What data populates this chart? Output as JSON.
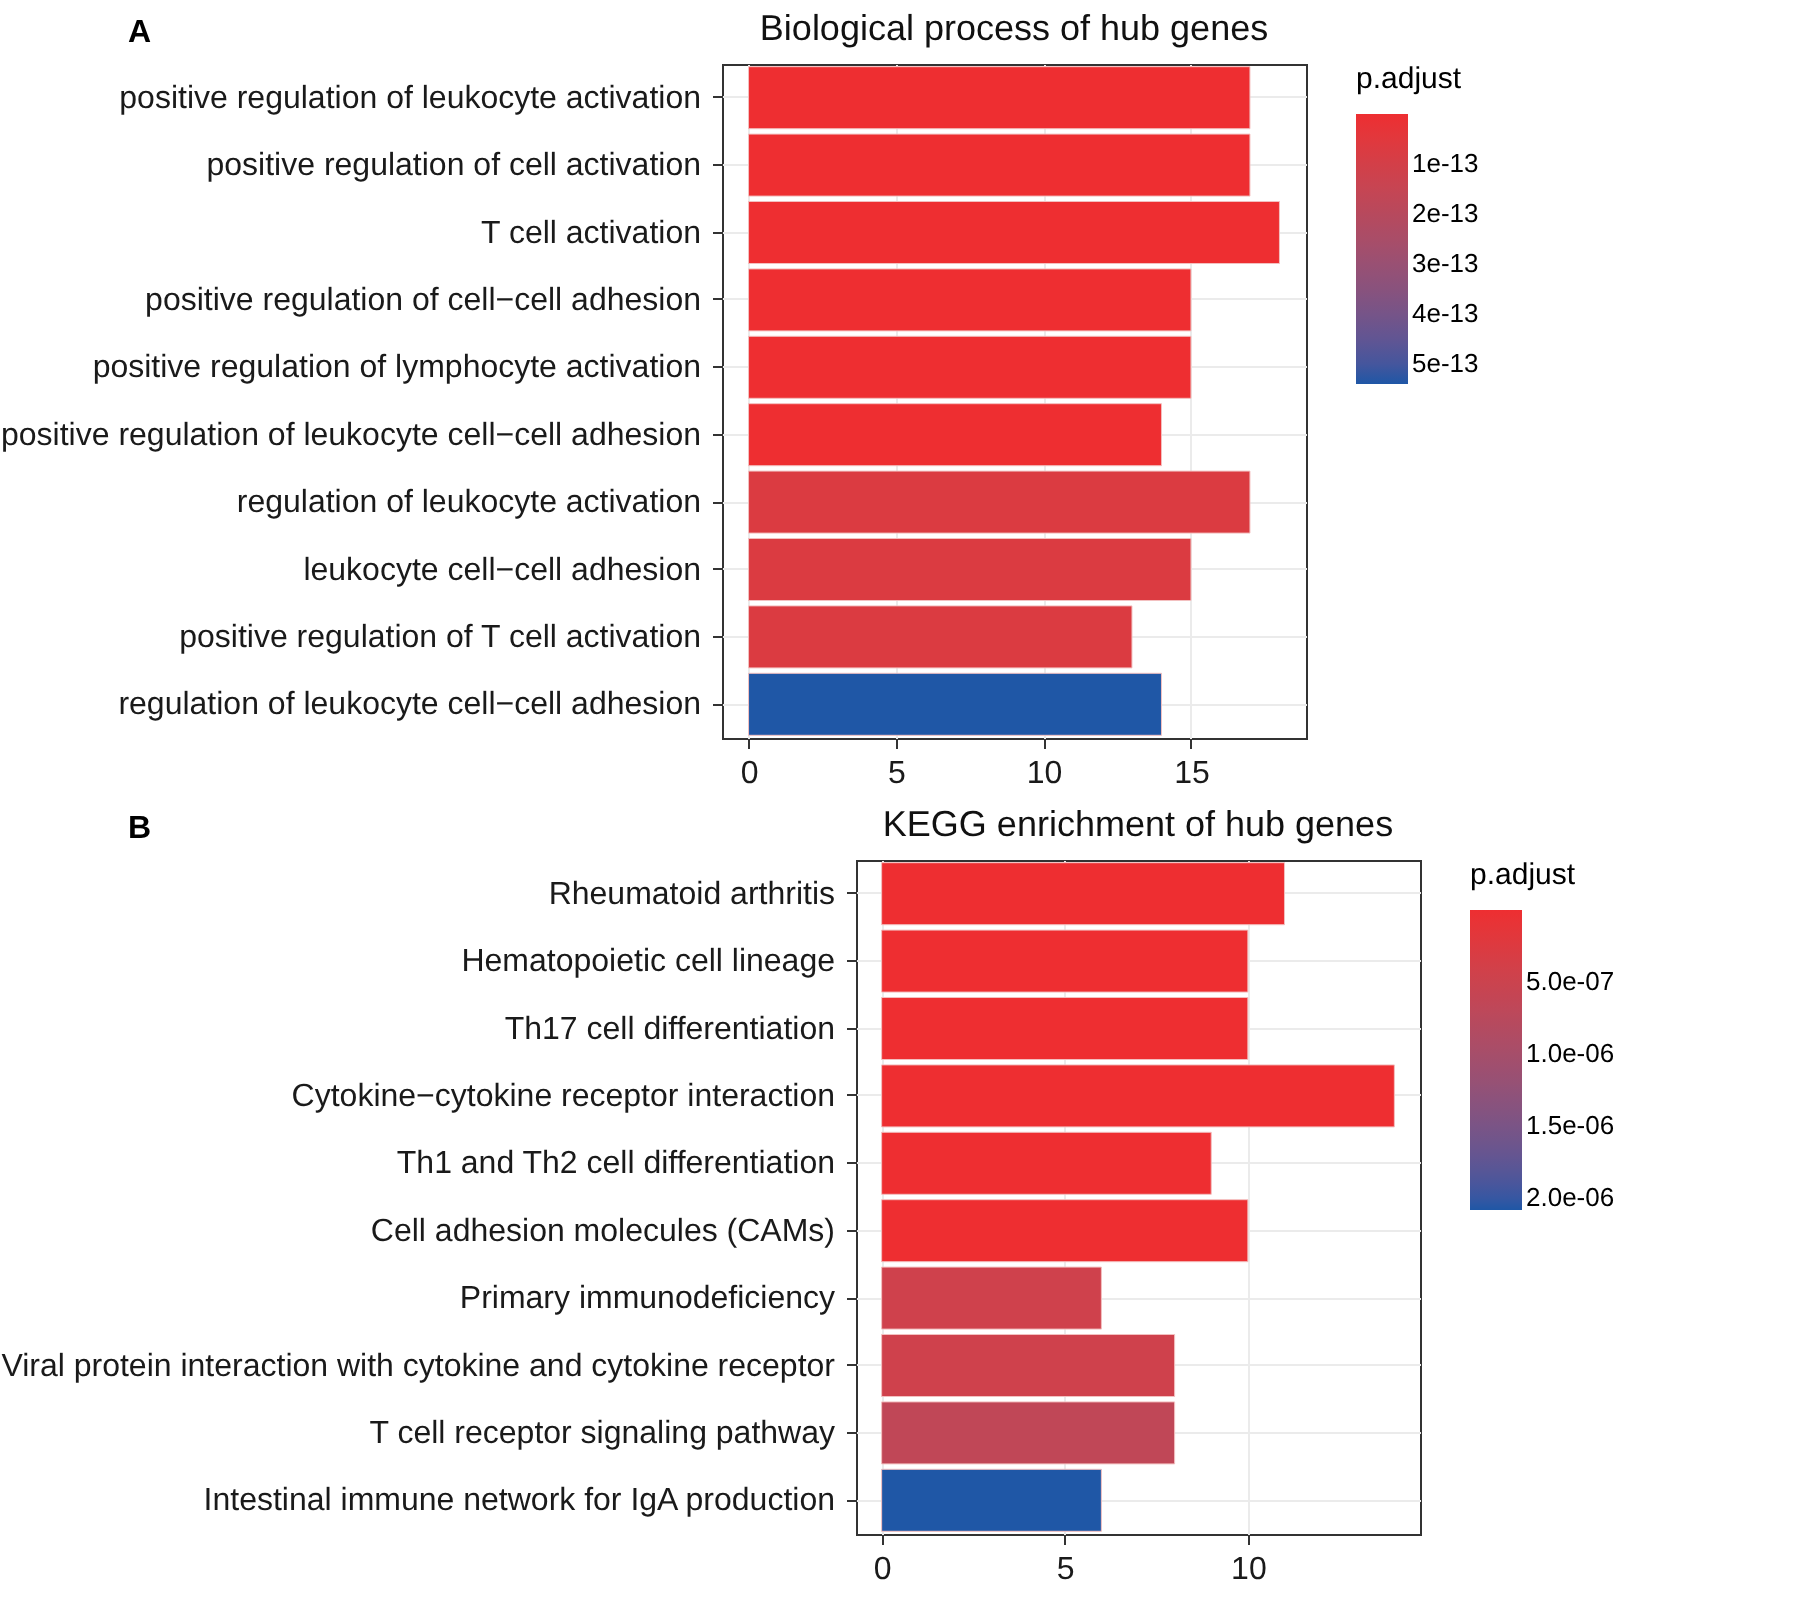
{
  "chart_data": [
    {
      "type": "bar",
      "orientation": "horizontal",
      "title": "Biological process of hub genes",
      "annotations": [
        "A"
      ],
      "clabel": "p.adjust",
      "clim": [
        0,
        5.4e-13
      ],
      "cticks": [
        {
          "value": 1e-13,
          "label": "1e-13"
        },
        {
          "value": 2e-13,
          "label": "2e-13"
        },
        {
          "value": 3e-13,
          "label": "3e-13"
        },
        {
          "value": 4e-13,
          "label": "4e-13"
        },
        {
          "value": 5e-13,
          "label": "5e-13"
        }
      ],
      "categories": [
        "positive regulation of leukocyte activation",
        "positive regulation of cell activation",
        "T cell activation",
        "positive regulation of cell−cell adhesion",
        "positive regulation of lymphocyte activation",
        "positive regulation of leukocyte cell−cell adhesion",
        "regulation of leukocyte activation",
        "leukocyte cell−cell adhesion",
        "positive regulation of T cell activation",
        "regulation of leukocyte cell−cell adhesion"
      ],
      "values": [
        17,
        17,
        18,
        15,
        15,
        14,
        17,
        15,
        13,
        14
      ],
      "cvalues": [
        0,
        0,
        0,
        0,
        0,
        0,
        7e-14,
        7e-14,
        7e-14,
        5.4e-13
      ],
      "xlim": [
        -0.9,
        18.9
      ],
      "xticks": [
        0,
        5,
        10,
        15
      ],
      "grid": true
    },
    {
      "type": "bar",
      "orientation": "horizontal",
      "title": "KEGG enrichment of hub genes",
      "annotations": [
        "B"
      ],
      "clabel": "p.adjust",
      "clim": [
        0,
        2.08e-06
      ],
      "cticks": [
        {
          "value": 5e-07,
          "label": "5.0e-07"
        },
        {
          "value": 1e-06,
          "label": "1.0e-06"
        },
        {
          "value": 1.5e-06,
          "label": "1.5e-06"
        },
        {
          "value": 2e-06,
          "label": "2.0e-06"
        }
      ],
      "categories": [
        "Rheumatoid arthritis",
        "Hematopoietic cell lineage",
        "Th17 cell differentiation",
        "Cytokine−cytokine receptor interaction",
        "Th1 and Th2 cell differentiation",
        "Cell adhesion molecules (CAMs)",
        "Primary immunodeficiency",
        "Viral protein interaction with cytokine and cytokine receptor",
        "T cell receptor signaling pathway",
        "Intestinal immune network for IgA production"
      ],
      "values": [
        11,
        10,
        10,
        14,
        9,
        10,
        6,
        8,
        8,
        6
      ],
      "cvalues": [
        0,
        0,
        0,
        0,
        0,
        0,
        4.5e-07,
        4.5e-07,
        6.5e-07,
        2.08e-06
      ],
      "xlim": [
        -0.7,
        14.7
      ],
      "xticks": [
        0,
        5,
        10
      ],
      "grid": true
    }
  ]
}
